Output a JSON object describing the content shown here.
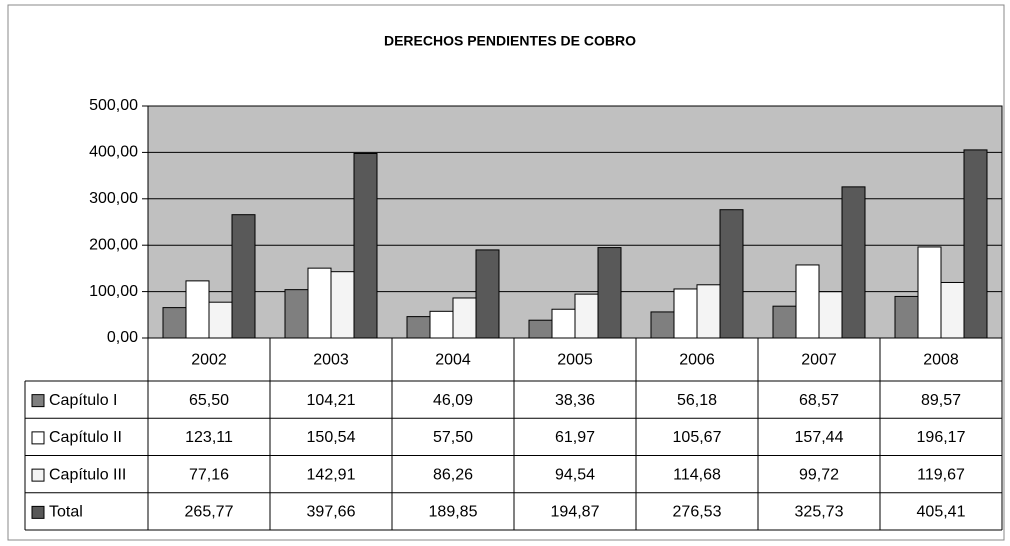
{
  "chart_data": {
    "type": "bar",
    "title": "DERECHOS PENDIENTES DE COBRO",
    "categories": [
      "2002",
      "2003",
      "2004",
      "2005",
      "2006",
      "2007",
      "2008"
    ],
    "series": [
      {
        "name": "Capítulo I",
        "color": "#7f7f7f",
        "values": [
          65.5,
          104.21,
          46.09,
          38.36,
          56.18,
          68.57,
          89.57
        ],
        "value_labels": [
          "65,50",
          "104,21",
          "46,09",
          "38,36",
          "56,18",
          "68,57",
          "89,57"
        ]
      },
      {
        "name": "Capítulo II",
        "color": "#ffffff",
        "values": [
          123.11,
          150.54,
          57.5,
          61.97,
          105.67,
          157.44,
          196.17
        ],
        "value_labels": [
          "123,11",
          "150,54",
          "57,50",
          "61,97",
          "105,67",
          "157,44",
          "196,17"
        ]
      },
      {
        "name": "Capítulo III",
        "color": "#f4f4f4",
        "values": [
          77.16,
          142.91,
          86.26,
          94.54,
          114.68,
          99.72,
          119.67
        ],
        "value_labels": [
          "77,16",
          "142,91",
          "86,26",
          "94,54",
          "114,68",
          "99,72",
          "119,67"
        ]
      },
      {
        "name": "Total",
        "color": "#595959",
        "values": [
          265.77,
          397.66,
          189.85,
          194.87,
          276.53,
          325.73,
          405.41
        ],
        "value_labels": [
          "265,77",
          "397,66",
          "189,85",
          "194,87",
          "276,53",
          "325,73",
          "405,41"
        ]
      }
    ],
    "ylim": [
      0,
      500
    ],
    "yticks": [
      {
        "value": 0,
        "label": "0,00"
      },
      {
        "value": 100,
        "label": "100,00"
      },
      {
        "value": 200,
        "label": "200,00"
      },
      {
        "value": 300,
        "label": "300,00"
      },
      {
        "value": 400,
        "label": "400,00"
      },
      {
        "value": 500,
        "label": "500,00"
      }
    ],
    "grid": true,
    "plot_background": "#c0c0c0"
  }
}
